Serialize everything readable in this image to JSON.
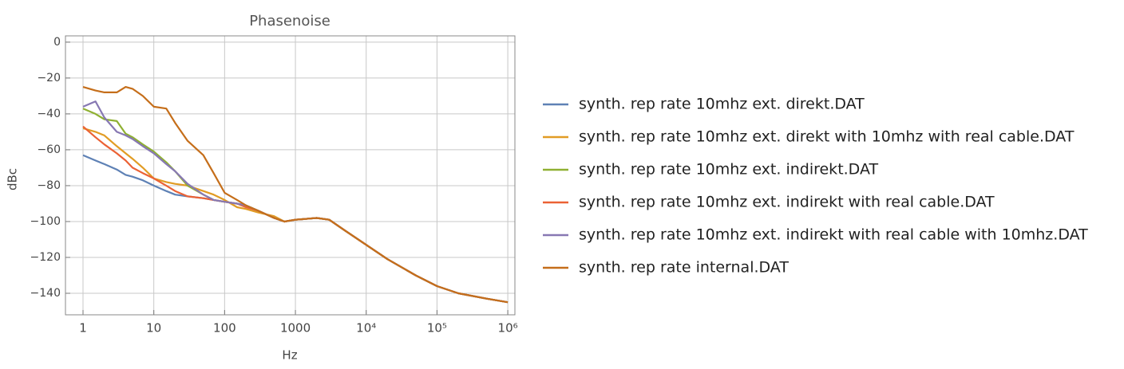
{
  "chart_data": {
    "type": "line",
    "title": "Phasenoise",
    "xlabel": "Hz",
    "ylabel": "dBc",
    "xscale": "log",
    "grid": true,
    "legend": "right",
    "x": [
      1,
      1.5,
      2,
      3,
      4,
      5,
      7,
      10,
      15,
      20,
      30,
      50,
      70,
      100,
      150,
      200,
      300,
      500,
      700,
      1000,
      2000,
      3000,
      5000,
      10000,
      20000,
      50000,
      100000,
      200000,
      500000,
      1000000
    ],
    "xlim": [
      0.565,
      1260000
    ],
    "xticks": [
      1,
      10,
      100,
      1000,
      {
        "value": 10000,
        "label": "10⁴"
      },
      {
        "value": 100000,
        "label": "10⁵"
      },
      {
        "value": 1000000,
        "label": "10⁶"
      }
    ],
    "ylim": [
      -152,
      3.5
    ],
    "yticks": [
      0,
      {
        "value": -20,
        "label": "−20"
      },
      {
        "value": -40,
        "label": "−40"
      },
      {
        "value": -60,
        "label": "−60"
      },
      {
        "value": -80,
        "label": "−80"
      },
      {
        "value": -100,
        "label": "−100"
      },
      {
        "value": -120,
        "label": "−120"
      },
      {
        "value": -140,
        "label": "−140"
      }
    ],
    "series": [
      {
        "name": "synth. rep rate 10mhz ext. direkt.DAT",
        "color": "#5e81b5",
        "values": [
          -63,
          -66,
          -68,
          -71,
          -74,
          -75,
          -77,
          -80,
          -83,
          -85,
          -86,
          -87,
          -88,
          -89,
          -90,
          -91,
          -94,
          -98,
          -100,
          -99,
          -98,
          -99,
          -105,
          -113,
          -121,
          -130,
          -136,
          -140,
          -143,
          -145
        ]
      },
      {
        "name": "synth. rep rate 10mhz ext. direkt with 10mhz with real cable.DAT",
        "color": "#e19c24",
        "values": [
          -48,
          -50,
          -52,
          -58,
          -62,
          -65,
          -70,
          -76,
          -78,
          -79,
          -80,
          -83,
          -85,
          -88,
          -92,
          -93,
          -95,
          -97,
          -100,
          -99,
          -98,
          -99,
          -105,
          -113,
          -121,
          -130,
          -136,
          -140,
          -143,
          -145
        ]
      },
      {
        "name": "synth. rep rate 10mhz ext. indirekt.DAT",
        "color": "#8fb032",
        "values": [
          -37,
          -40,
          -43,
          -44,
          -51,
          -53,
          -57,
          -61,
          -67,
          -72,
          -80,
          -85,
          -88,
          -89,
          -90,
          -91,
          -94,
          -98,
          -100,
          -99,
          -98,
          -99,
          -105,
          -113,
          -121,
          -130,
          -136,
          -140,
          -143,
          -145
        ]
      },
      {
        "name": "synth. rep rate 10mhz ext. indirekt with real cable.DAT",
        "color": "#eb6235",
        "values": [
          -47,
          -53,
          -57,
          -62,
          -66,
          -70,
          -73,
          -76,
          -80,
          -83,
          -86,
          -87,
          -88,
          -89,
          -90,
          -92,
          -94,
          -98,
          -100,
          -99,
          -98,
          -99,
          -105,
          -113,
          -121,
          -130,
          -136,
          -140,
          -143,
          -145
        ]
      },
      {
        "name": "synth. rep rate 10mhz ext. indirekt with real cable with 10mhz.DAT",
        "color": "#8778b3",
        "values": [
          -36,
          -33,
          -42,
          -50,
          -52,
          -54,
          -58,
          -62,
          -68,
          -72,
          -79,
          -85,
          -88,
          -89,
          -90,
          -91,
          -94,
          -98,
          -100,
          -99,
          -98,
          -99,
          -105,
          -113,
          -121,
          -130,
          -136,
          -140,
          -143,
          -145
        ]
      },
      {
        "name": "synth. rep rate internal.DAT",
        "color": "#c56e1a",
        "values": [
          -25,
          -27,
          -28,
          -28,
          -25,
          -26,
          -30,
          -36,
          -37,
          -45,
          -55,
          -63,
          -73,
          -84,
          -88,
          -91,
          -94,
          -98,
          -100,
          -99,
          -98,
          -99,
          -105,
          -113,
          -121,
          -130,
          -136,
          -140,
          -143,
          -145
        ]
      }
    ]
  }
}
